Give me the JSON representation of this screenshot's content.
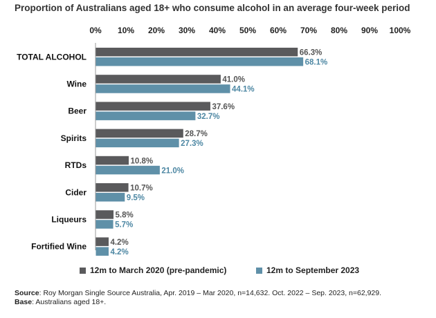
{
  "chart_data": {
    "type": "bar",
    "orientation": "horizontal",
    "title": "Proportion of Australians aged 18+ who consume alcohol in an average four-week period",
    "categories": [
      "TOTAL ALCOHOL",
      "Wine",
      "Beer",
      "Spirits",
      "RTDs",
      "Cider",
      "Liqueurs",
      "Fortified Wine"
    ],
    "series": [
      {
        "name": "12m to March 2020 (pre-pandemic)",
        "color": "#5a5a5c",
        "label_color": "#555555",
        "values": [
          66.3,
          41.0,
          37.6,
          28.7,
          10.8,
          10.7,
          5.8,
          4.2
        ],
        "labels": [
          "66.3%",
          "41.0%",
          "37.6%",
          "28.7%",
          "10.8%",
          "10.7%",
          "5.8%",
          "4.2%"
        ]
      },
      {
        "name": "12m to September 2023",
        "color": "#5f90a8",
        "label_color": "#4d87a3",
        "values": [
          68.1,
          44.1,
          32.7,
          27.3,
          21.0,
          9.5,
          5.7,
          4.2
        ],
        "labels": [
          "68.1%",
          "44.1%",
          "32.7%",
          "27.3%",
          "21.0%",
          "9.5%",
          "5.7%",
          "4.2%"
        ]
      }
    ],
    "xlim": [
      0,
      100
    ],
    "x_ticks": [
      0,
      10,
      20,
      30,
      40,
      50,
      60,
      70,
      80,
      90,
      100
    ],
    "x_tick_labels": [
      "0%",
      "10%",
      "20%",
      "30%",
      "40%",
      "50%",
      "60%",
      "70%",
      "80%",
      "90%",
      "100%"
    ],
    "axis_position": "top",
    "grid": false,
    "legend_position": "bottom"
  },
  "footer": {
    "source_label": "Source",
    "source_text": ": Roy Morgan Single Source Australia, Apr. 2019 – Mar 2020, n=14,632. Oct. 2022 – Sep. 2023, n=62,929.",
    "base_label": "Base",
    "base_text": ": Australians aged 18+."
  }
}
